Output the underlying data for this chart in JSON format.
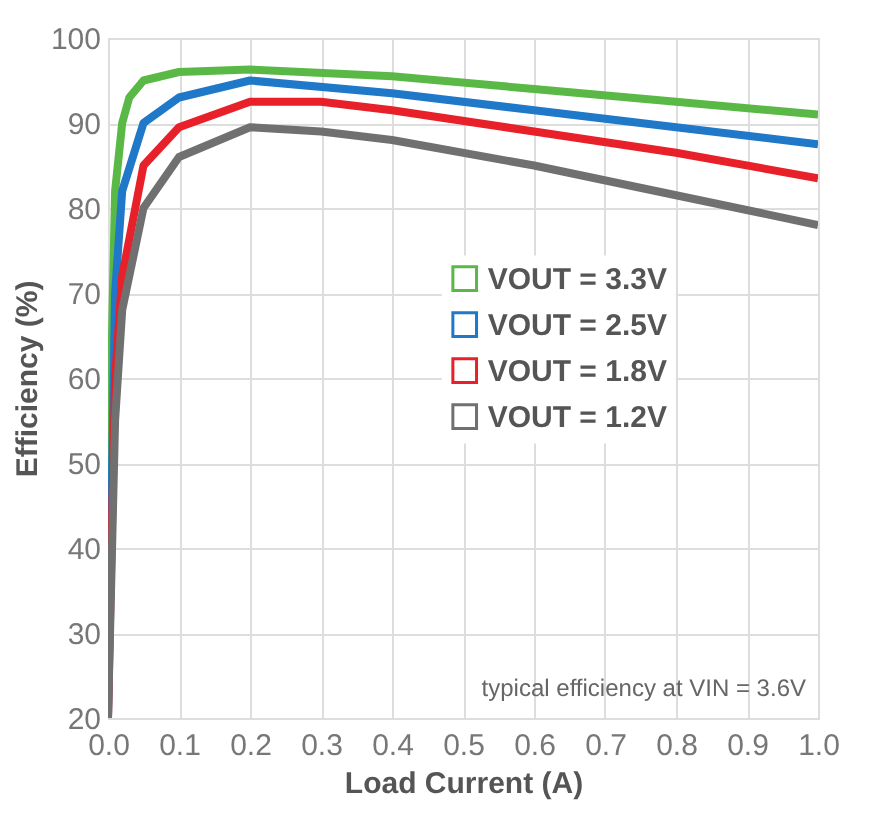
{
  "chart_data": {
    "type": "line",
    "xlabel": "Load Current (A)",
    "ylabel": "Efficiency (%)",
    "xlim": [
      0,
      1
    ],
    "ylim": [
      20,
      100
    ],
    "xticks": [
      {
        "value": 0,
        "label": "0.0"
      },
      0.1,
      0.2,
      0.3,
      0.4,
      0.5,
      0.6,
      0.7,
      0.8,
      0.9,
      {
        "value": 1,
        "label": "1.0"
      }
    ],
    "yticks": [
      20,
      30,
      40,
      50,
      60,
      70,
      80,
      90,
      100
    ],
    "grid": true,
    "legend": "center",
    "marker": "none",
    "line_style": "solid",
    "annotations": [
      "typical efficiency at VIN = 3.6V"
    ],
    "series": [
      {
        "name": "VOUT = 3.3V",
        "color": "#5ab946",
        "x": [
          0,
          0.003,
          0.01,
          0.02,
          0.03,
          0.05,
          0.1,
          0.2,
          0.4,
          0.6,
          0.8,
          1.0
        ],
        "values": [
          20,
          55,
          82,
          90,
          93,
          95,
          96,
          96.3,
          95.5,
          94,
          92.5,
          91
        ]
      },
      {
        "name": "VOUT = 2.5V",
        "color": "#1f78c8",
        "x": [
          0,
          0.005,
          0.01,
          0.02,
          0.05,
          0.1,
          0.2,
          0.4,
          0.6,
          0.8,
          1.0
        ],
        "values": [
          20,
          45,
          70,
          82,
          90,
          93,
          95,
          93.5,
          91.5,
          89.5,
          87.5
        ]
      },
      {
        "name": "VOUT = 1.8V",
        "color": "#e8202a",
        "x": [
          0,
          0.01,
          0.02,
          0.05,
          0.1,
          0.2,
          0.3,
          0.4,
          0.6,
          0.8,
          1.0
        ],
        "values": [
          20,
          60,
          72,
          85,
          89.5,
          92.5,
          92.5,
          91.5,
          89,
          86.5,
          83.5
        ]
      },
      {
        "name": "VOUT = 1.2V",
        "color": "#707070",
        "x": [
          0,
          0.01,
          0.02,
          0.05,
          0.1,
          0.2,
          0.3,
          0.4,
          0.6,
          0.8,
          1.0
        ],
        "values": [
          20,
          55,
          68,
          80,
          86,
          89.5,
          89,
          88,
          85,
          81.5,
          78
        ]
      }
    ]
  }
}
